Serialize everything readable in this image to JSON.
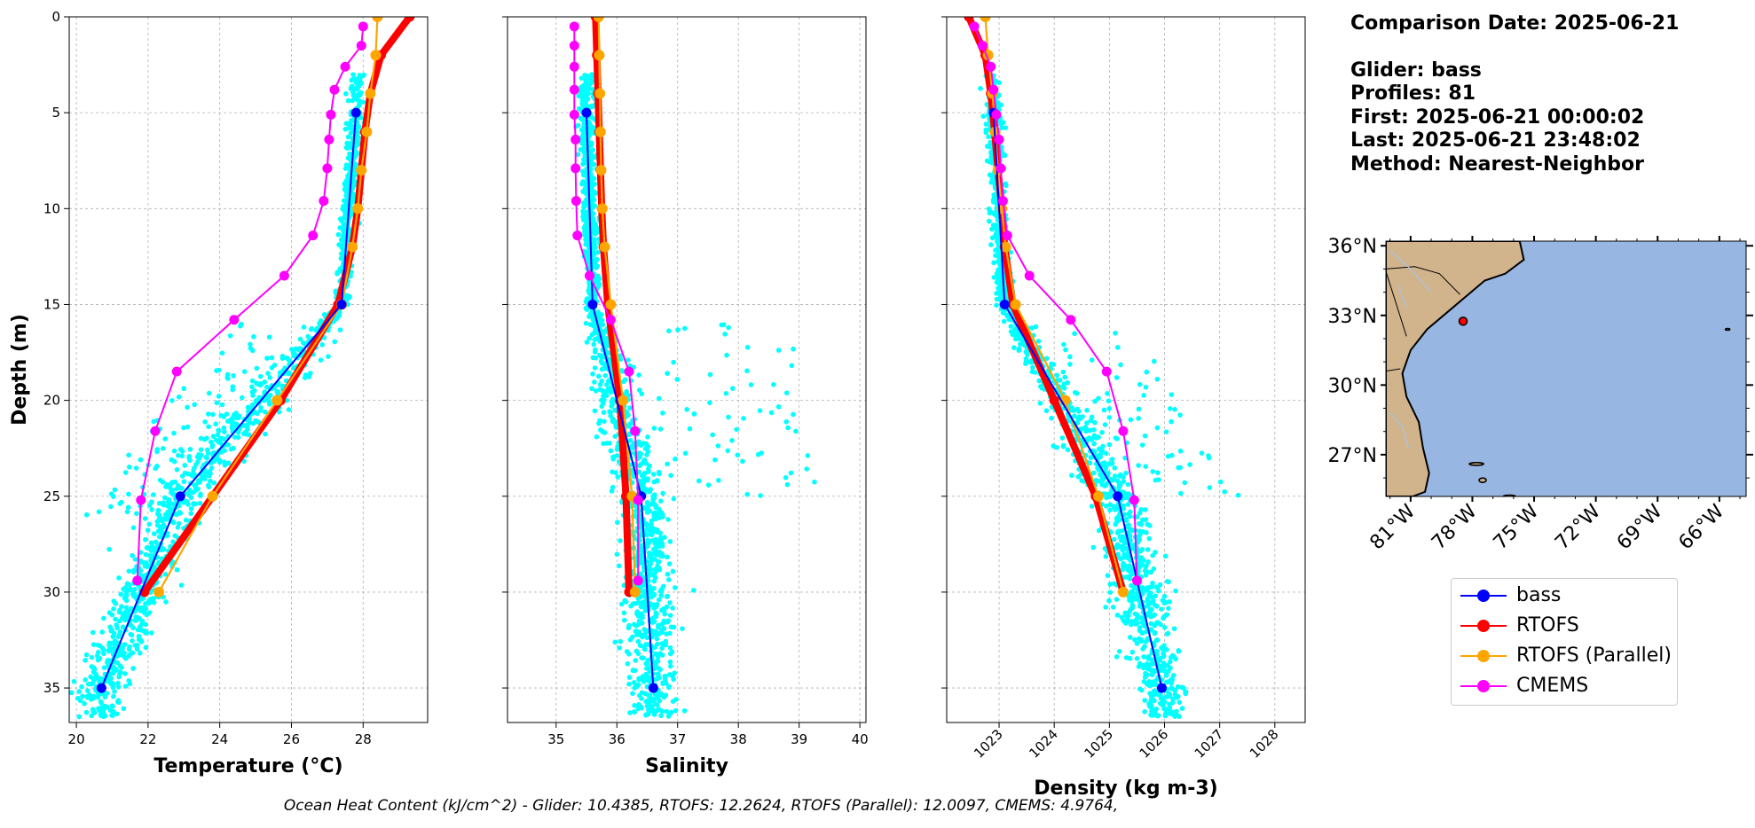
{
  "info": {
    "comparison": "Comparison Date: 2025-06-21",
    "glider": "Glider: bass",
    "profiles": "Profiles: 81",
    "first": "First: 2025-06-21 00:00:02",
    "last": "Last: 2025-06-21 23:48:02",
    "method": "Method: Nearest-Neighbor"
  },
  "footer": "Ocean Heat Content (kJ/cm^2) - Glider: 10.4385,  RTOFS: 12.2624,  RTOFS (Parallel): 12.0097,  CMEMS: 4.9764,",
  "colors": {
    "glider_scatter": "#00ffff",
    "bass": "#0000ff",
    "rtofs": "#ff0000",
    "rtofs_parallel": "#ffa500",
    "cmems": "#ff00ff",
    "land": "#d2b48c",
    "ocean": "#97b6e1",
    "grid": "#b0b0b0"
  },
  "legend": [
    {
      "label": "bass",
      "color": "#0000ff"
    },
    {
      "label": "RTOFS",
      "color": "#ff0000"
    },
    {
      "label": "RTOFS (Parallel)",
      "color": "#ffa500"
    },
    {
      "label": "CMEMS",
      "color": "#ff00ff"
    }
  ],
  "chart_data": [
    {
      "type": "line",
      "xlabel": "Temperature (°C)",
      "ylabel": "Depth (m)",
      "xlim": [
        19.8,
        29.8
      ],
      "ylim": [
        36.8,
        0
      ],
      "xticks": [
        20,
        22,
        24,
        26,
        28
      ],
      "yticks": [
        0,
        5,
        10,
        15,
        20,
        25,
        30,
        35
      ],
      "grid": true,
      "series": [
        {
          "name": "bass",
          "depth": [
            5,
            15,
            25,
            35
          ],
          "values": [
            27.8,
            27.4,
            22.9,
            20.7
          ]
        },
        {
          "name": "RTOFS",
          "depth": [
            0,
            2,
            4,
            6,
            8,
            10,
            12,
            15,
            20,
            25,
            30
          ],
          "values": [
            29.3,
            28.5,
            28.2,
            28.05,
            27.95,
            27.85,
            27.7,
            27.3,
            25.7,
            23.8,
            21.9
          ]
        },
        {
          "name": "RTOFS (Parallel)",
          "depth": [
            0,
            2,
            4,
            6,
            8,
            10,
            12,
            15,
            20,
            25,
            30
          ],
          "values": [
            28.4,
            28.35,
            28.2,
            28.1,
            27.95,
            27.85,
            27.7,
            27.4,
            25.6,
            23.8,
            22.3
          ]
        },
        {
          "name": "CMEMS",
          "depth": [
            0.5,
            1.5,
            2.6,
            3.8,
            5.1,
            6.4,
            7.9,
            9.6,
            11.4,
            13.5,
            15.8,
            18.5,
            21.6,
            25.2,
            29.4
          ],
          "values": [
            28.0,
            27.95,
            27.5,
            27.2,
            27.1,
            27.05,
            27.0,
            26.9,
            26.6,
            25.8,
            24.4,
            22.8,
            22.2,
            21.8,
            21.7
          ]
        }
      ]
    },
    {
      "type": "line",
      "xlabel": "Salinity",
      "ylabel": "",
      "xlim": [
        34.2,
        40.1
      ],
      "ylim": [
        36.8,
        0
      ],
      "xticks": [
        35,
        36,
        37,
        38,
        39,
        40
      ],
      "yticks": [
        0,
        5,
        10,
        15,
        20,
        25,
        30,
        35
      ],
      "grid": true,
      "series": [
        {
          "name": "bass",
          "depth": [
            5,
            15,
            25,
            35
          ],
          "values": [
            35.5,
            35.6,
            36.4,
            36.6
          ]
        },
        {
          "name": "RTOFS",
          "depth": [
            0,
            2,
            4,
            6,
            8,
            10,
            12,
            15,
            20,
            25,
            30
          ],
          "values": [
            35.65,
            35.67,
            35.69,
            35.71,
            35.73,
            35.75,
            35.78,
            35.85,
            36.05,
            36.15,
            36.2
          ]
        },
        {
          "name": "RTOFS (Parallel)",
          "depth": [
            0,
            2,
            4,
            6,
            8,
            10,
            12,
            15,
            20,
            25,
            30
          ],
          "values": [
            35.7,
            35.71,
            35.72,
            35.73,
            35.74,
            35.76,
            35.8,
            35.9,
            36.1,
            36.25,
            36.3
          ]
        },
        {
          "name": "CMEMS",
          "depth": [
            0.5,
            1.5,
            2.6,
            3.8,
            5.1,
            6.4,
            7.9,
            9.6,
            11.4,
            13.5,
            15.8,
            18.5,
            21.6,
            25.2,
            29.4
          ],
          "values": [
            35.3,
            35.3,
            35.3,
            35.3,
            35.3,
            35.32,
            35.32,
            35.33,
            35.35,
            35.55,
            35.9,
            36.2,
            36.3,
            36.35,
            36.35
          ]
        }
      ]
    },
    {
      "type": "line",
      "xlabel": "Density (kg m-3)",
      "ylabel": "",
      "xlim": [
        1022.05,
        1028.55
      ],
      "ylim": [
        36.8,
        0
      ],
      "xticks": [
        1023,
        1024,
        1025,
        1026,
        1027,
        1028
      ],
      "yticks": [
        0,
        5,
        10,
        15,
        20,
        25,
        30,
        35
      ],
      "grid": true,
      "series": [
        {
          "name": "bass",
          "depth": [
            5,
            15,
            25,
            35
          ],
          "values": [
            1022.9,
            1023.1,
            1025.15,
            1025.95
          ]
        },
        {
          "name": "RTOFS",
          "depth": [
            0,
            2,
            4,
            6,
            8,
            10,
            12,
            15,
            20,
            25,
            30
          ],
          "values": [
            1022.45,
            1022.75,
            1022.85,
            1022.92,
            1022.98,
            1023.05,
            1023.1,
            1023.25,
            1024.0,
            1024.75,
            1025.25
          ]
        },
        {
          "name": "RTOFS (Parallel)",
          "depth": [
            0,
            2,
            4,
            6,
            8,
            10,
            12,
            15,
            20,
            25,
            30
          ],
          "values": [
            1022.75,
            1022.8,
            1022.88,
            1022.93,
            1022.98,
            1023.05,
            1023.12,
            1023.3,
            1024.2,
            1024.8,
            1025.25
          ]
        },
        {
          "name": "CMEMS",
          "depth": [
            0.5,
            1.5,
            2.6,
            3.8,
            5.1,
            6.4,
            7.9,
            9.6,
            11.4,
            13.5,
            15.8,
            18.5,
            21.6,
            25.2,
            29.4
          ],
          "values": [
            1022.55,
            1022.7,
            1022.85,
            1022.9,
            1022.95,
            1023.0,
            1023.03,
            1023.07,
            1023.15,
            1023.55,
            1024.3,
            1024.95,
            1025.25,
            1025.45,
            1025.5
          ]
        }
      ]
    }
  ],
  "map": {
    "lat_labels": [
      "36°N",
      "33°N",
      "30°N",
      "27°N"
    ],
    "lon_labels": [
      "81°W",
      "78°W",
      "75°W",
      "72°W",
      "69°W",
      "66°W"
    ],
    "lon_range": [
      -82.2,
      -64.7
    ],
    "lat_range": [
      25.2,
      36.2
    ],
    "marker_lon": -78.45,
    "marker_lat": 32.75
  }
}
